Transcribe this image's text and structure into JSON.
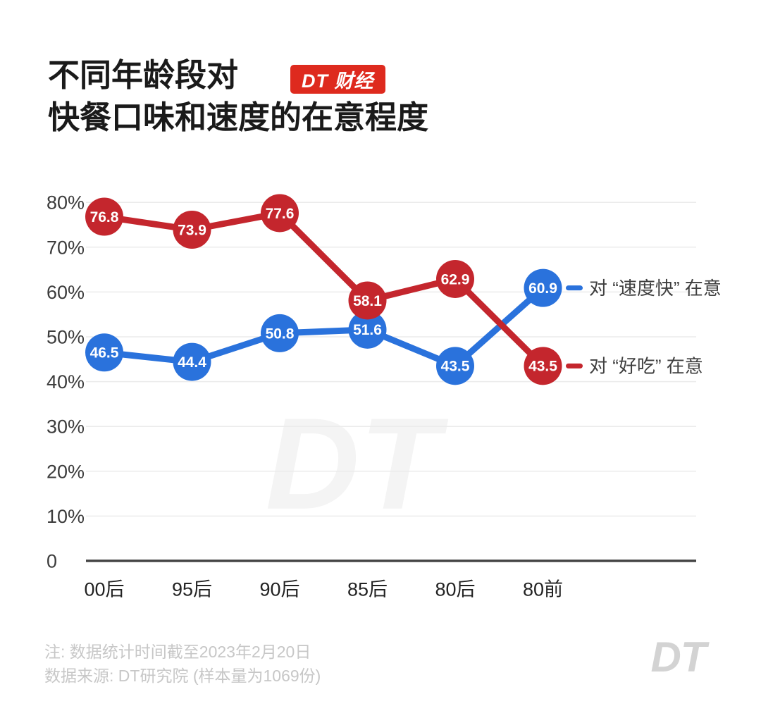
{
  "header": {
    "title_line1": "不同年龄段对",
    "title_line2": "快餐口味和速度的在意程度",
    "badge": "DT 财经",
    "badge_color": "#de2a1e"
  },
  "chart_data": {
    "type": "line",
    "title": "不同年龄段对快餐口味和速度的在意程度",
    "categories": [
      "00后",
      "95后",
      "90后",
      "85后",
      "80后",
      "80前"
    ],
    "series": [
      {
        "name": "对 “速度快” 在意",
        "color": "#2a72dc",
        "values": [
          46.5,
          44.4,
          50.8,
          51.6,
          43.5,
          60.9
        ]
      },
      {
        "name": "对 “好吃” 在意",
        "color": "#c4262d",
        "values": [
          76.8,
          73.9,
          77.6,
          58.1,
          62.9,
          43.5
        ]
      }
    ],
    "y_ticks": [
      {
        "label": "80%",
        "value": 80
      },
      {
        "label": "70%",
        "value": 70
      },
      {
        "label": "60%",
        "value": 60
      },
      {
        "label": "50%",
        "value": 50
      },
      {
        "label": "40%",
        "value": 40
      },
      {
        "label": "30%",
        "value": 30
      },
      {
        "label": "20%",
        "value": 20
      },
      {
        "label": "10%",
        "value": 10
      },
      {
        "label": "0",
        "value": 0
      }
    ],
    "ylim": [
      0,
      80
    ],
    "grid": true,
    "unit": "%",
    "legend_position": "right-of-last-point",
    "watermark": "DT",
    "colors": {
      "gridline": "#ebebeb",
      "axis": "#454545",
      "tick_label": "#3c3c3c",
      "category_label": "#222222",
      "legend_text": "#3f3f3f",
      "point_label": "#ffffff",
      "watermark": "#f4f4f4"
    }
  },
  "footer": {
    "note": "注: 数据统计时间截至2023年2月20日",
    "source": "数据来源: DT研究院 (样本量为1069份)",
    "logo": "DT"
  }
}
